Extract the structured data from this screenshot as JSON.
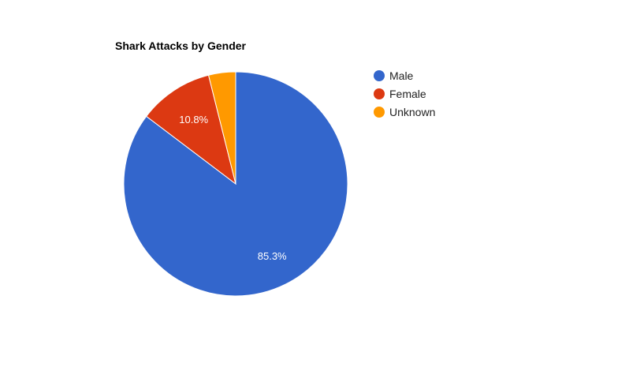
{
  "chart_data": {
    "type": "pie",
    "title": "Shark Attacks by Gender",
    "categories": [
      "Male",
      "Female",
      "Unknown"
    ],
    "values": [
      85.3,
      10.8,
      3.9
    ],
    "value_labels": [
      "85.3%",
      "10.8%",
      ""
    ],
    "colors": [
      "#3366cc",
      "#dc3912",
      "#ff9900"
    ],
    "legend_position": "right",
    "start_angle": "12 o'clock",
    "direction": "clockwise"
  }
}
